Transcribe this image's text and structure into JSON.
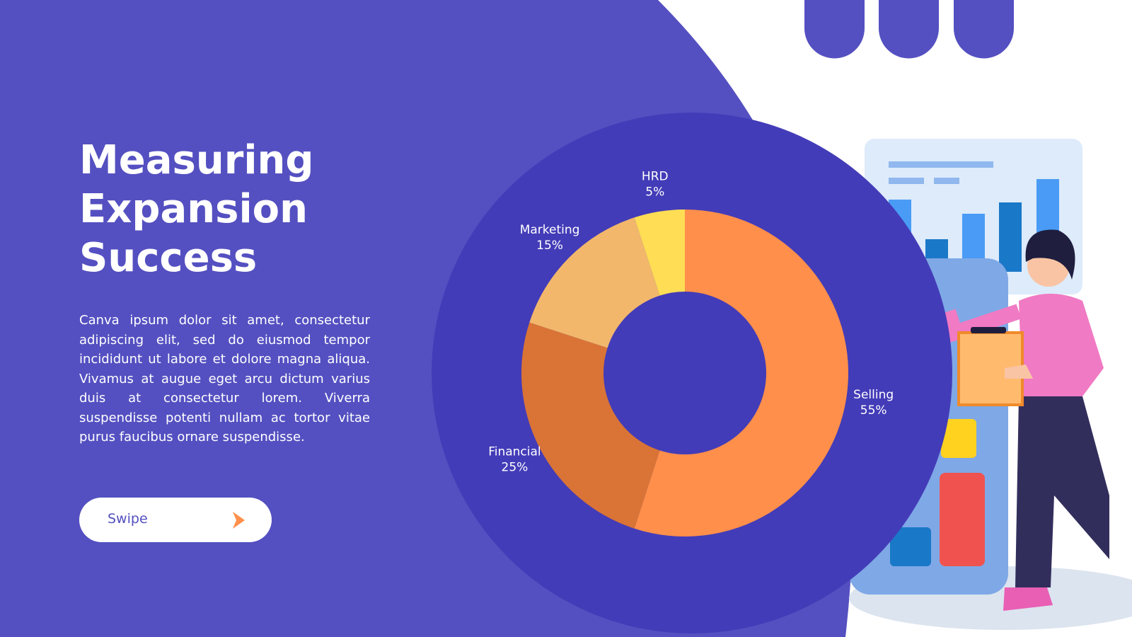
{
  "slide": {
    "title": "Measuring Expansion Success",
    "body": "Canva ipsum dolor sit amet, consectetur adipiscing elit, sed do eiusmod tempor incididunt ut labore et dolore magna aliqua. Vivamus at augue eget arcu dictum varius duis at consectetur lorem. Viverra suspendisse potenti nullam ac tortor vitae purus faucibus ornare suspendisse.",
    "button": "Swipe"
  },
  "chart_data": {
    "type": "donut",
    "categories": [
      "Selling",
      "Financial",
      "Marketing",
      "HRD"
    ],
    "values": [
      55,
      25,
      15,
      5
    ],
    "value_labels": [
      "55%",
      "25%",
      "15%",
      "5%"
    ],
    "colors": [
      "#ff8f4a",
      "#d97436",
      "#f2b76b",
      "#ffdd55"
    ]
  }
}
